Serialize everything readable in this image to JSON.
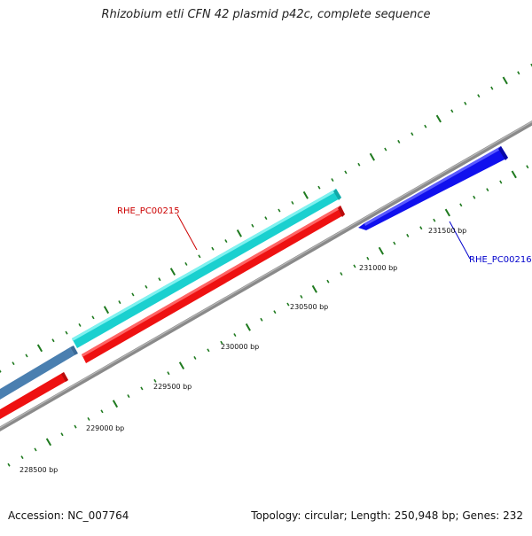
{
  "title": "Rhizobium etli CFN 42 plasmid p42c, complete sequence",
  "footer": {
    "accession": "Accession: NC_007764",
    "summary": "Topology: circular; Length: 250,948 bp; Genes: 232"
  },
  "scale_labels": [
    "228500 bp",
    "229000 bp",
    "229500 bp",
    "230000 bp",
    "230500 bp",
    "231000 bp",
    "231500 bp"
  ],
  "gene_labels": [
    {
      "text": "RHE_PC00215",
      "color": "#cc0000"
    },
    {
      "text": "RHE_PC00216",
      "color": "#0000cc"
    }
  ],
  "colors": {
    "backbone": "#8a8a8a",
    "tick": "#1f7a1f",
    "feature_cyan": "#1ad0cf",
    "feature_red": "#ee1111",
    "feature_steelblue": "#4a7fb0",
    "feature_blue": "#1010ee"
  }
}
